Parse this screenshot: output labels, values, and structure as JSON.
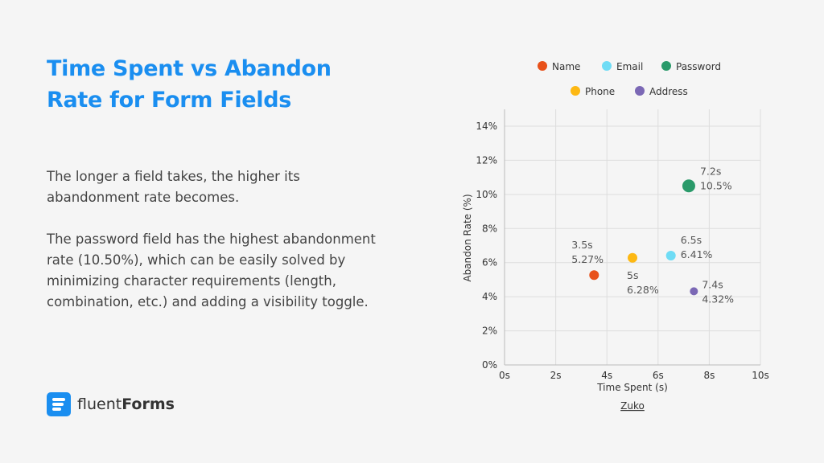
{
  "title": "Time Spent vs Abandon Rate for Form Fields",
  "paragraphs": [
    "The longer a field takes, the higher its abandonment rate becomes.",
    "The password field has the highest abandonment rate (10.50%), which can be easily solved by minimizing character requirements (length, combination, etc.) and adding a visibility toggle."
  ],
  "logo": {
    "part1": "fluent",
    "part2": "Forms"
  },
  "chart_data": {
    "type": "scatter",
    "title": "",
    "xlabel": "Time Spent (s)",
    "ylabel": "Abandon Rate (%)",
    "xlim": [
      0,
      10
    ],
    "ylim": [
      0,
      14
    ],
    "xticks": [
      "0s",
      "2s",
      "4s",
      "6s",
      "8s",
      "10s"
    ],
    "yticks": [
      "0%",
      "2%",
      "4%",
      "6%",
      "8%",
      "10%",
      "12%",
      "14%"
    ],
    "grid": true,
    "legend_position": "top",
    "source": "Zuko",
    "series": [
      {
        "name": "Name",
        "color": "#e8511a",
        "x": 3.5,
        "y": 5.27,
        "label_x": "3.5s",
        "label_y": "5.27%"
      },
      {
        "name": "Email",
        "color": "#6fdcf5",
        "x": 6.5,
        "y": 6.41,
        "label_x": "6.5s",
        "label_y": "6.41%"
      },
      {
        "name": "Password",
        "color": "#2a9a6a",
        "x": 7.2,
        "y": 10.5,
        "label_x": "7.2s",
        "label_y": "10.5%"
      },
      {
        "name": "Phone",
        "color": "#fdb813",
        "x": 5,
        "y": 6.28,
        "label_x": "5s",
        "label_y": "6.28%"
      },
      {
        "name": "Address",
        "color": "#7b68b5",
        "x": 7.4,
        "y": 4.32,
        "label_x": "7.4s",
        "label_y": "4.32%"
      }
    ]
  }
}
